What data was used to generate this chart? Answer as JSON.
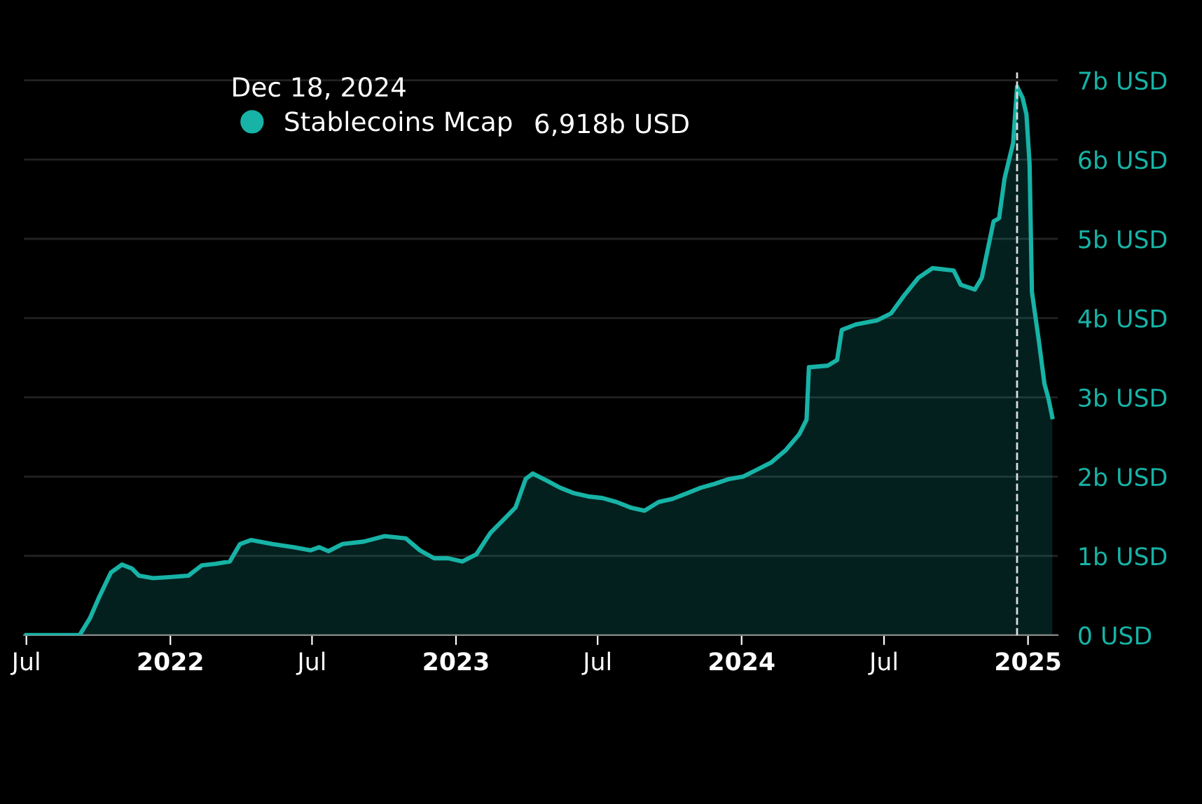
{
  "chart_data": {
    "type": "area",
    "x": [
      "2021-07-01",
      "2021-09-07",
      "2021-09-20",
      "2021-10-02",
      "2021-10-17",
      "2021-10-31",
      "2021-11-13",
      "2021-11-22",
      "2021-12-10",
      "2021-12-28",
      "2022-01-24",
      "2022-02-10",
      "2022-02-28",
      "2022-03-18",
      "2022-03-31",
      "2022-04-14",
      "2022-05-11",
      "2022-06-07",
      "2022-06-29",
      "2022-07-10",
      "2022-07-22",
      "2022-08-09",
      "2022-09-05",
      "2022-10-02",
      "2022-10-29",
      "2022-11-16",
      "2022-12-04",
      "2022-12-22",
      "2023-01-09",
      "2023-01-27",
      "2023-02-14",
      "2023-03-04",
      "2023-03-18",
      "2023-03-31",
      "2023-04-09",
      "2023-04-27",
      "2023-05-14",
      "2023-06-01",
      "2023-06-19",
      "2023-07-07",
      "2023-07-25",
      "2023-08-12",
      "2023-08-30",
      "2023-09-17",
      "2023-10-05",
      "2023-10-23",
      "2023-11-10",
      "2023-11-28",
      "2023-12-16",
      "2024-01-03",
      "2024-01-21",
      "2024-02-08",
      "2024-02-26",
      "2024-03-15",
      "2024-03-24",
      "2024-03-27",
      "2024-04-20",
      "2024-05-02",
      "2024-05-08",
      "2024-05-26",
      "2024-06-22",
      "2024-07-10",
      "2024-07-27",
      "2024-08-14",
      "2024-09-01",
      "2024-09-28",
      "2024-10-07",
      "2024-10-25",
      "2024-11-03",
      "2024-11-18",
      "2024-11-25",
      "2024-12-02",
      "2024-12-13",
      "2024-12-18",
      "2024-12-25",
      "2024-12-30",
      "2025-01-03",
      "2025-01-06",
      "2025-01-15",
      "2025-01-22",
      "2025-01-27",
      "2025-02-01"
    ],
    "series": [
      {
        "name": "Stablecoins Mcap",
        "color": "#17b3a6",
        "values": [
          0,
          0,
          0.21,
          0.48,
          0.79,
          0.89,
          0.84,
          0.75,
          0.72,
          0.73,
          0.75,
          0.88,
          0.9,
          0.93,
          1.15,
          1.2,
          1.15,
          1.11,
          1.07,
          1.11,
          1.06,
          1.15,
          1.18,
          1.25,
          1.22,
          1.07,
          0.97,
          0.97,
          0.93,
          1.02,
          1.29,
          1.47,
          1.61,
          1.97,
          2.04,
          1.95,
          1.86,
          1.79,
          1.75,
          1.73,
          1.68,
          1.61,
          1.57,
          1.68,
          1.72,
          1.79,
          1.86,
          1.91,
          1.97,
          2.0,
          2.09,
          2.18,
          2.33,
          2.54,
          2.72,
          3.38,
          3.4,
          3.47,
          3.85,
          3.92,
          3.97,
          4.06,
          4.29,
          4.51,
          4.63,
          4.6,
          4.42,
          4.36,
          4.51,
          5.22,
          5.26,
          5.76,
          6.21,
          6.92,
          6.78,
          6.57,
          5.94,
          4.33,
          3.7,
          3.17,
          2.99,
          2.75
        ]
      }
    ],
    "xlim": [
      "2021-06-28",
      "2025-02-08"
    ],
    "xticks": [
      {
        "value": "2021-07-01",
        "label": "Jul"
      },
      {
        "value": "2022-01-01",
        "label": "2022"
      },
      {
        "value": "2022-07-01",
        "label": "Jul"
      },
      {
        "value": "2023-01-01",
        "label": "2023"
      },
      {
        "value": "2023-07-01",
        "label": "Jul"
      },
      {
        "value": "2024-01-01",
        "label": "2024"
      },
      {
        "value": "2024-07-01",
        "label": "Jul"
      },
      {
        "value": "2025-01-01",
        "label": "2025"
      }
    ],
    "ylim": [
      0,
      7.1
    ],
    "yticks": [
      {
        "value": 0,
        "label": "0 USD"
      },
      {
        "value": 1,
        "label": "1b USD"
      },
      {
        "value": 2,
        "label": "2b USD"
      },
      {
        "value": 3,
        "label": "3b USD"
      },
      {
        "value": 4,
        "label": "4b USD"
      },
      {
        "value": 5,
        "label": "5b USD"
      },
      {
        "value": 6,
        "label": "6b USD"
      },
      {
        "value": 7,
        "label": "7b USD"
      }
    ],
    "grid": "y",
    "legend": "top left",
    "marker": "none",
    "line_style": "solid",
    "ref_lines": [
      {
        "axis": "x",
        "value": "2024-12-18",
        "label": null,
        "color": "#dddddd",
        "line_style": "dashed"
      }
    ],
    "annotations": [
      "Dec 18, 2024",
      "6,918b USD"
    ]
  }
}
